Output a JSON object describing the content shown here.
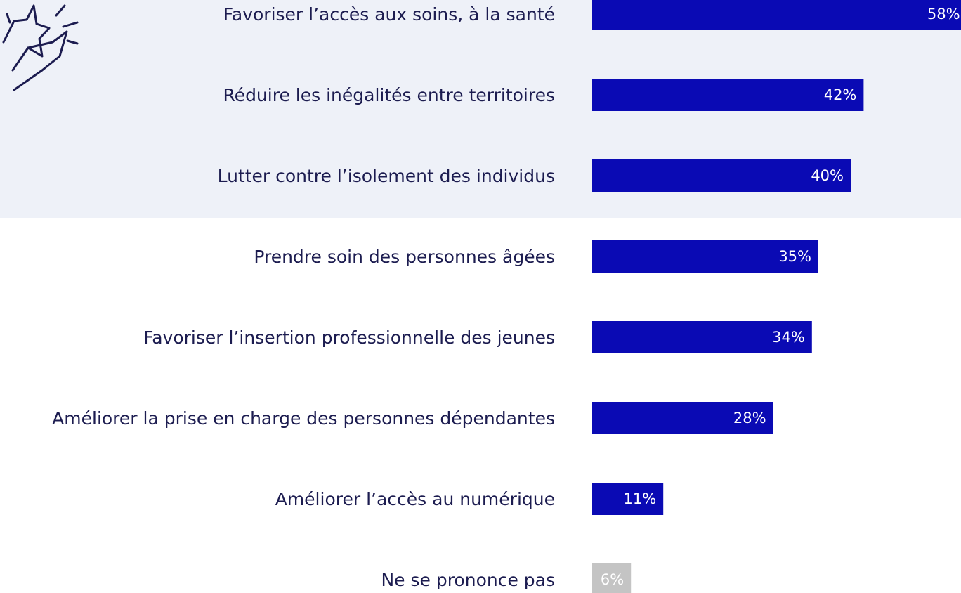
{
  "chart_data": {
    "type": "bar",
    "categories": [
      "Favoriser l’accès aux soins, à la santé",
      "Réduire les inégalités entre territoires",
      "Lutter contre l’isolement des individus",
      "Prendre soin des personnes âgées",
      "Favoriser l’insertion professionnelle des jeunes",
      "Améliorer la prise en charge des personnes dépendantes",
      "Améliorer l’accès au numérique",
      "Ne se prononce pas"
    ],
    "values": [
      58,
      42,
      40,
      35,
      34,
      28,
      11,
      6
    ],
    "value_labels": [
      "58%",
      "42%",
      "40%",
      "35%",
      "34%",
      "28%",
      "11%",
      "6%"
    ],
    "colors": [
      "#0a0ab4",
      "#0a0ab4",
      "#0a0ab4",
      "#0a0ab4",
      "#0a0ab4",
      "#0a0ab4",
      "#0a0ab4",
      "#c4c4c4"
    ]
  }
}
